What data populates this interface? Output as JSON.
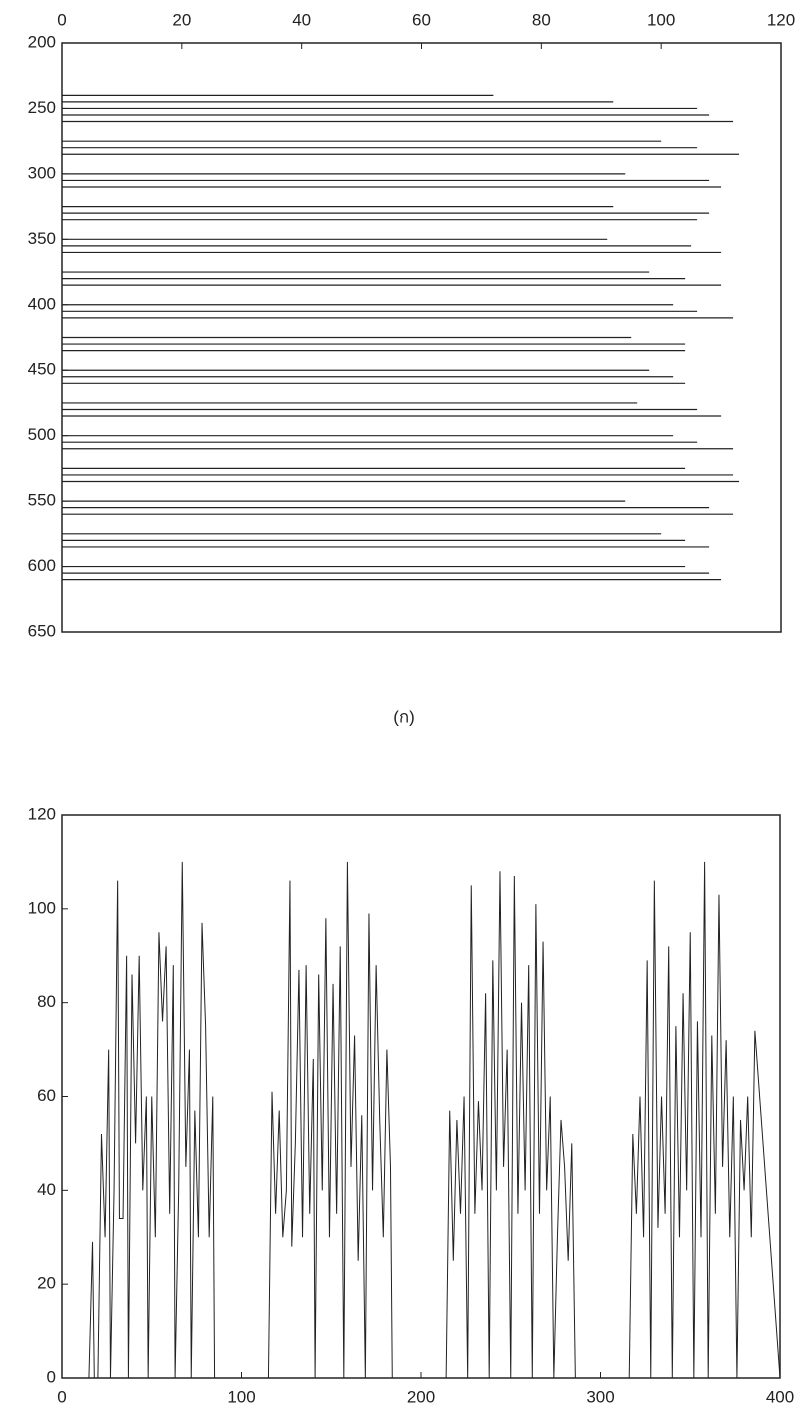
{
  "chart_data": [
    {
      "type": "hlines",
      "caption": "(ก)",
      "y": [
        240,
        245,
        250,
        255,
        260,
        275,
        280,
        285,
        300,
        305,
        310,
        325,
        330,
        335,
        350,
        355,
        360,
        375,
        380,
        385,
        400,
        405,
        410,
        425,
        430,
        435,
        450,
        455,
        460,
        475,
        480,
        485,
        500,
        505,
        510,
        525,
        530,
        535,
        550,
        555,
        560,
        575,
        580,
        585,
        600,
        605,
        610
      ],
      "values": [
        72,
        92,
        106,
        108,
        112,
        100,
        106,
        113,
        94,
        108,
        110,
        92,
        108,
        106,
        91,
        105,
        110,
        98,
        104,
        110,
        102,
        106,
        112,
        95,
        104,
        104,
        98,
        102,
        104,
        96,
        106,
        110,
        102,
        106,
        112,
        104,
        112,
        113,
        94,
        108,
        112,
        100,
        104,
        108,
        104,
        108,
        110
      ],
      "color": "#222222",
      "xlim": [
        0,
        120
      ],
      "xticks": [
        0,
        20,
        40,
        60,
        80,
        100,
        120
      ],
      "ylim": [
        200,
        650
      ],
      "yticks": [
        200,
        250,
        300,
        350,
        400,
        450,
        500,
        550,
        600,
        650
      ],
      "y_inverted": true
    },
    {
      "type": "line",
      "x": [
        0,
        15,
        17,
        18,
        20,
        22,
        24,
        26,
        27,
        29,
        31,
        32,
        34,
        36,
        37,
        39,
        41,
        43,
        45,
        47,
        48,
        50,
        52,
        54,
        56,
        58,
        60,
        62,
        63,
        65,
        67,
        69,
        71,
        72,
        74,
        76,
        78,
        80,
        82,
        84,
        85,
        115,
        117,
        119,
        121,
        123,
        125,
        127,
        128,
        130,
        132,
        134,
        136,
        138,
        140,
        141,
        143,
        145,
        147,
        149,
        151,
        153,
        155,
        157,
        159,
        161,
        163,
        165,
        167,
        169,
        171,
        173,
        175,
        177,
        179,
        181,
        183,
        184,
        214,
        216,
        218,
        220,
        222,
        224,
        226,
        228,
        230,
        232,
        234,
        236,
        238,
        240,
        242,
        244,
        246,
        248,
        250,
        252,
        254,
        256,
        258,
        260,
        262,
        264,
        266,
        268,
        270,
        272,
        274,
        276,
        278,
        280,
        282,
        284,
        286,
        316,
        318,
        320,
        322,
        324,
        326,
        328,
        330,
        332,
        334,
        336,
        338,
        340,
        342,
        344,
        346,
        348,
        350,
        352,
        354,
        356,
        358,
        360,
        362,
        364,
        366,
        368,
        370,
        372,
        374,
        376,
        378,
        380,
        382,
        384,
        386,
        400
      ],
      "series": [
        {
          "color": "#222222",
          "values": [
            0,
            0,
            29,
            0,
            0,
            52,
            30,
            70,
            0,
            40,
            106,
            34,
            34,
            90,
            0,
            86,
            50,
            90,
            40,
            60,
            0,
            60,
            30,
            95,
            76,
            92,
            35,
            88,
            0,
            40,
            110,
            45,
            70,
            0,
            57,
            30,
            97,
            75,
            30,
            60,
            0,
            0,
            61,
            35,
            57,
            30,
            40,
            106,
            28,
            50,
            87,
            30,
            88,
            35,
            68,
            0,
            86,
            40,
            98,
            30,
            84,
            35,
            92,
            0,
            110,
            45,
            73,
            25,
            56,
            0,
            99,
            40,
            88,
            55,
            30,
            70,
            45,
            0,
            0,
            57,
            25,
            55,
            35,
            60,
            0,
            105,
            35,
            59,
            40,
            82,
            0,
            89,
            40,
            108,
            45,
            70,
            0,
            107,
            35,
            80,
            40,
            88,
            0,
            101,
            35,
            93,
            40,
            60,
            0,
            30,
            55,
            45,
            25,
            50,
            0,
            0,
            52,
            35,
            60,
            30,
            89,
            0,
            106,
            32,
            60,
            35,
            92,
            0,
            75,
            30,
            82,
            40,
            95,
            0,
            76,
            30,
            110,
            0,
            73,
            35,
            103,
            45,
            72,
            30,
            60,
            0,
            55,
            40,
            60,
            30,
            74,
            0
          ]
        }
      ],
      "xlim": [
        0,
        400
      ],
      "xticks": [
        0,
        100,
        200,
        300,
        400
      ],
      "ylim": [
        0,
        120
      ],
      "yticks": [
        0,
        20,
        40,
        60,
        80,
        100,
        120
      ]
    }
  ]
}
